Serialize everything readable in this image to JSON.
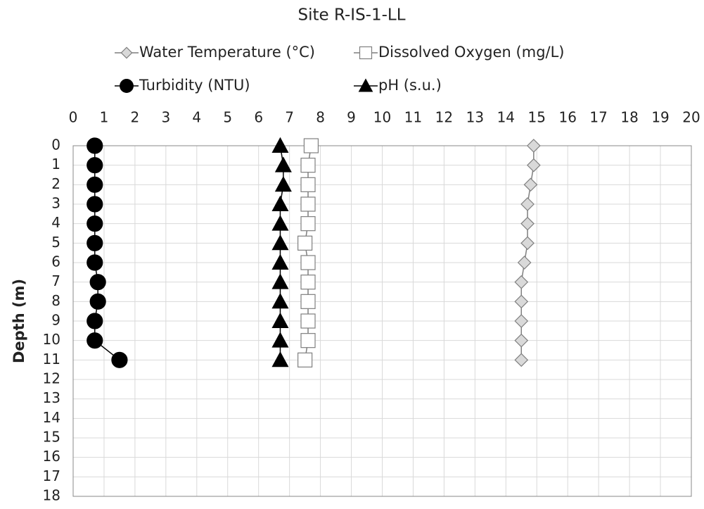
{
  "chart_data": {
    "type": "line",
    "title": "Site R-IS-1-LL",
    "ylabel": "Depth (m)",
    "y": [
      0,
      1,
      2,
      3,
      4,
      5,
      6,
      7,
      8,
      9,
      10,
      11
    ],
    "series": [
      {
        "name": "Water Temperature (°C)",
        "color": "#d9d9d9",
        "marker": "diamond",
        "values": [
          14.9,
          14.9,
          14.8,
          14.7,
          14.7,
          14.7,
          14.6,
          14.5,
          14.5,
          14.5,
          14.5,
          14.5
        ]
      },
      {
        "name": "Dissolved Oxygen (mg/L)",
        "color": "#ffffff",
        "marker": "square",
        "values": [
          7.7,
          7.6,
          7.6,
          7.6,
          7.6,
          7.5,
          7.6,
          7.6,
          7.6,
          7.6,
          7.6,
          7.5
        ]
      },
      {
        "name": "Turbidity (NTU)",
        "color": "#000000",
        "marker": "circle",
        "values": [
          0.7,
          0.7,
          0.7,
          0.7,
          0.7,
          0.7,
          0.7,
          0.8,
          0.8,
          0.7,
          0.7,
          1.5
        ]
      },
      {
        "name": "pH (s.u.)",
        "color": "#000000",
        "marker": "triangle",
        "values": [
          6.7,
          6.8,
          6.8,
          6.7,
          6.7,
          6.7,
          6.7,
          6.7,
          6.7,
          6.7,
          6.7,
          6.7
        ]
      }
    ],
    "xlim": [
      0,
      20
    ],
    "xticks": [
      0,
      1,
      2,
      3,
      4,
      5,
      6,
      7,
      8,
      9,
      10,
      11,
      12,
      13,
      14,
      15,
      16,
      17,
      18,
      19,
      20
    ],
    "ylim": [
      0,
      18
    ],
    "yticks": [
      0,
      1,
      2,
      3,
      4,
      5,
      6,
      7,
      8,
      9,
      10,
      11,
      12,
      13,
      14,
      15,
      16,
      17,
      18
    ],
    "y_inverted": true,
    "x_axis_position": "top",
    "grid": true,
    "legend": "top"
  }
}
